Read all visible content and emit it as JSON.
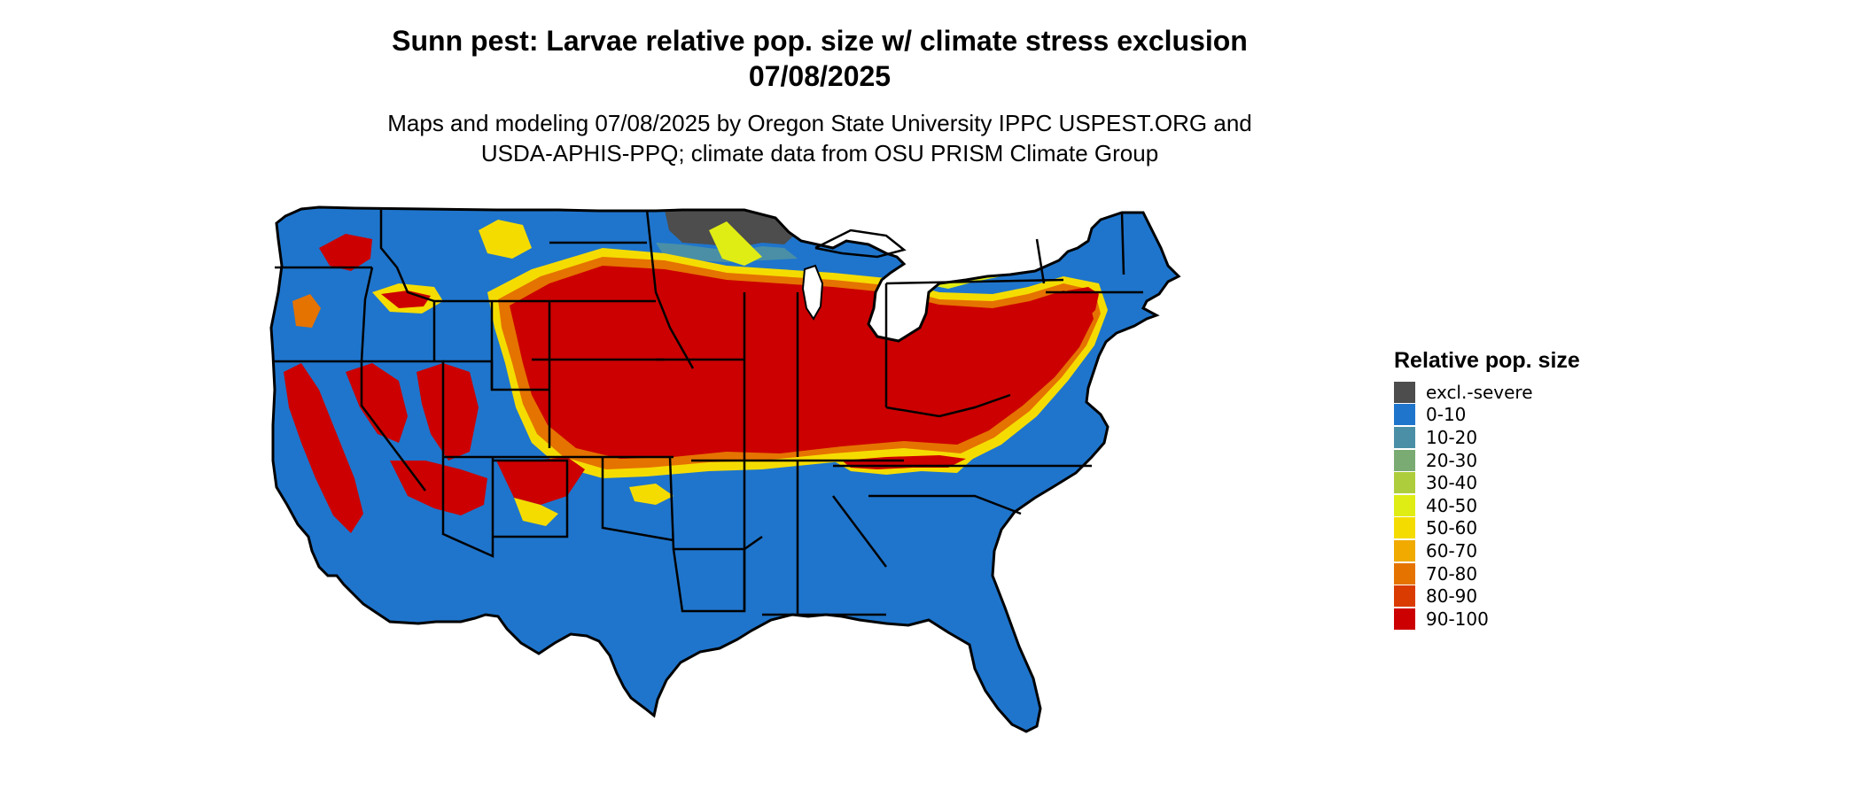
{
  "header": {
    "title_line1": "Sunn pest: Larvae relative pop. size w/ climate stress exclusion",
    "title_line2": "07/08/2025",
    "subtitle_line1": "Maps and modeling 07/08/2025 by Oregon State University IPPC USPEST.ORG and",
    "subtitle_line2": "USDA-APHIS-PPQ; climate data from OSU PRISM Climate Group"
  },
  "legend": {
    "title": "Relative pop. size",
    "items": [
      {
        "label": "excl.-severe",
        "color": "#4d4d4d"
      },
      {
        "label": "0-10",
        "color": "#1f75cc"
      },
      {
        "label": "10-20",
        "color": "#4a8fa6"
      },
      {
        "label": "20-30",
        "color": "#79ab73"
      },
      {
        "label": "30-40",
        "color": "#aecd3c"
      },
      {
        "label": "40-50",
        "color": "#e0ed15"
      },
      {
        "label": "50-60",
        "color": "#f5dc00"
      },
      {
        "label": "60-70",
        "color": "#f0aa00"
      },
      {
        "label": "70-80",
        "color": "#e57300"
      },
      {
        "label": "80-90",
        "color": "#da3b00"
      },
      {
        "label": "90-100",
        "color": "#cc0000"
      }
    ]
  },
  "map": {
    "region": "Contiguous United States",
    "base_color": "#1f75cc",
    "border_color": "#000000"
  }
}
